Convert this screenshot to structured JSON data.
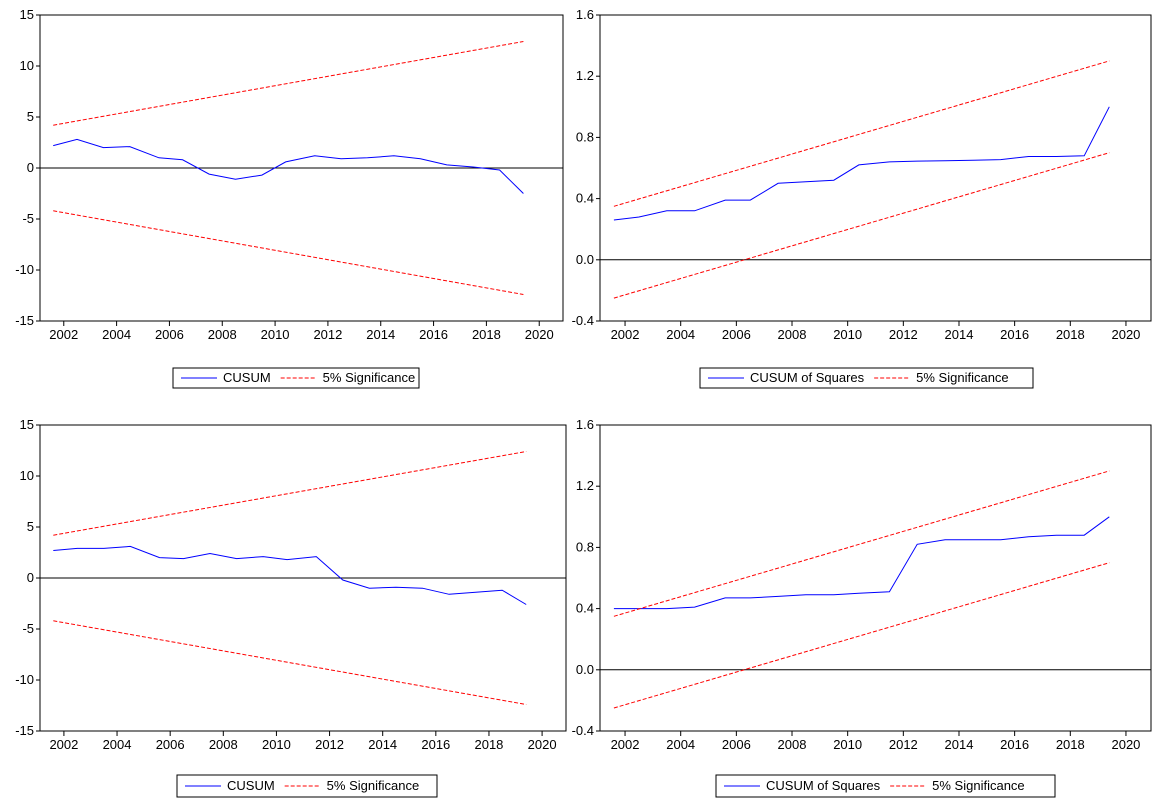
{
  "chart_data": [
    {
      "type": "line",
      "x": [
        2002,
        2003,
        2004,
        2005,
        2006,
        2007,
        2008,
        2009,
        2010,
        2011,
        2012,
        2013,
        2014,
        2015,
        2016,
        2017,
        2018,
        2019,
        2020
      ],
      "xticks": [
        2002,
        2004,
        2006,
        2008,
        2010,
        2012,
        2014,
        2016,
        2018,
        2020
      ],
      "xlim": [
        2001.1,
        2020.9
      ],
      "ylim": [
        -15,
        15
      ],
      "yticks": [
        "-15",
        "-10",
        "-5",
        "0",
        "5",
        "10",
        "15"
      ],
      "zero_line": true,
      "series": [
        {
          "name": "CUSUM",
          "color": "#0000ff",
          "dash": false,
          "points": [
            [
              2001.6,
              2.2
            ],
            [
              2002.5,
              2.8
            ],
            [
              2003.5,
              2.0
            ],
            [
              2004.5,
              2.1
            ],
            [
              2005.6,
              1.0
            ],
            [
              2006.5,
              0.8
            ],
            [
              2007.5,
              -0.6
            ],
            [
              2008.5,
              -1.1
            ],
            [
              2009.5,
              -0.7
            ],
            [
              2010.4,
              0.6
            ],
            [
              2011.5,
              1.2
            ],
            [
              2012.5,
              0.9
            ],
            [
              2013.5,
              1.0
            ],
            [
              2014.5,
              1.2
            ],
            [
              2015.5,
              0.9
            ],
            [
              2016.5,
              0.3
            ],
            [
              2017.5,
              0.1
            ],
            [
              2018.5,
              -0.2
            ],
            [
              2019.4,
              -2.5
            ]
          ]
        },
        {
          "name": "5% Significance",
          "color": "#ff0000",
          "dash": true,
          "points": [
            [
              2001.6,
              4.2
            ],
            [
              2019.4,
              12.4
            ]
          ]
        },
        {
          "color": "#ff0000",
          "dash": true,
          "points": [
            [
              2001.6,
              -4.2
            ],
            [
              2019.4,
              -12.4
            ]
          ]
        }
      ],
      "legend": [
        "CUSUM",
        "5% Significance"
      ]
    },
    {
      "type": "line",
      "x": [
        2002,
        2003,
        2004,
        2005,
        2006,
        2007,
        2008,
        2009,
        2010,
        2011,
        2012,
        2013,
        2014,
        2015,
        2016,
        2017,
        2018,
        2019,
        2020
      ],
      "xticks": [
        2002,
        2004,
        2006,
        2008,
        2010,
        2012,
        2014,
        2016,
        2018,
        2020
      ],
      "xlim": [
        2001.1,
        2020.9
      ],
      "ylim": [
        -0.4,
        1.6
      ],
      "yticks": [
        "-0.4",
        "0.0",
        "0.4",
        "0.8",
        "1.2",
        "1.6"
      ],
      "zero_line": true,
      "series": [
        {
          "name": "CUSUM of Squares",
          "color": "#0000ff",
          "dash": false,
          "points": [
            [
              2001.6,
              0.26
            ],
            [
              2002.5,
              0.28
            ],
            [
              2003.5,
              0.32
            ],
            [
              2004.5,
              0.32
            ],
            [
              2005.6,
              0.39
            ],
            [
              2006.5,
              0.39
            ],
            [
              2007.5,
              0.5
            ],
            [
              2008.5,
              0.51
            ],
            [
              2009.5,
              0.52
            ],
            [
              2010.4,
              0.62
            ],
            [
              2011.5,
              0.64
            ],
            [
              2012.5,
              0.645
            ],
            [
              2013.5,
              0.648
            ],
            [
              2014.5,
              0.65
            ],
            [
              2015.5,
              0.655
            ],
            [
              2016.5,
              0.675
            ],
            [
              2017.5,
              0.675
            ],
            [
              2018.5,
              0.68
            ],
            [
              2019.4,
              1.0
            ]
          ]
        },
        {
          "name": "5% Significance",
          "color": "#ff0000",
          "dash": true,
          "points": [
            [
              2001.6,
              0.35
            ],
            [
              2019.4,
              1.3
            ]
          ]
        },
        {
          "color": "#ff0000",
          "dash": true,
          "points": [
            [
              2001.6,
              -0.25
            ],
            [
              2019.4,
              0.7
            ]
          ]
        }
      ],
      "legend": [
        "CUSUM of Squares",
        "5% Significance"
      ]
    },
    {
      "type": "line",
      "x": [
        2002,
        2003,
        2004,
        2005,
        2006,
        2007,
        2008,
        2009,
        2010,
        2011,
        2012,
        2013,
        2014,
        2015,
        2016,
        2017,
        2018,
        2019,
        2020
      ],
      "xticks": [
        2002,
        2004,
        2006,
        2008,
        2010,
        2012,
        2014,
        2016,
        2018,
        2020
      ],
      "xlim": [
        2001.1,
        2020.9
      ],
      "ylim": [
        -15,
        15
      ],
      "yticks": [
        "-15",
        "-10",
        "-5",
        "0",
        "5",
        "10",
        "15"
      ],
      "zero_line": true,
      "series": [
        {
          "name": "CUSUM",
          "color": "#0000ff",
          "dash": false,
          "points": [
            [
              2001.6,
              2.7
            ],
            [
              2002.5,
              2.9
            ],
            [
              2003.5,
              2.9
            ],
            [
              2004.5,
              3.1
            ],
            [
              2005.6,
              2.0
            ],
            [
              2006.5,
              1.9
            ],
            [
              2007.5,
              2.4
            ],
            [
              2008.5,
              1.9
            ],
            [
              2009.5,
              2.1
            ],
            [
              2010.4,
              1.8
            ],
            [
              2011.5,
              2.1
            ],
            [
              2012.5,
              -0.2
            ],
            [
              2013.5,
              -1.0
            ],
            [
              2014.5,
              -0.9
            ],
            [
              2015.5,
              -1.0
            ],
            [
              2016.5,
              -1.6
            ],
            [
              2017.5,
              -1.4
            ],
            [
              2018.5,
              -1.2
            ],
            [
              2019.4,
              -2.6
            ]
          ]
        },
        {
          "name": "5% Significance",
          "color": "#ff0000",
          "dash": true,
          "points": [
            [
              2001.6,
              4.2
            ],
            [
              2019.4,
              12.4
            ]
          ]
        },
        {
          "color": "#ff0000",
          "dash": true,
          "points": [
            [
              2001.6,
              -4.2
            ],
            [
              2019.4,
              -12.4
            ]
          ]
        }
      ],
      "legend": [
        "CUSUM",
        "5% Significance"
      ]
    },
    {
      "type": "line",
      "x": [
        2002,
        2003,
        2004,
        2005,
        2006,
        2007,
        2008,
        2009,
        2010,
        2011,
        2012,
        2013,
        2014,
        2015,
        2016,
        2017,
        2018,
        2019,
        2020
      ],
      "xticks": [
        2002,
        2004,
        2006,
        2008,
        2010,
        2012,
        2014,
        2016,
        2018,
        2020
      ],
      "xlim": [
        2001.1,
        2020.9
      ],
      "ylim": [
        -0.4,
        1.6
      ],
      "yticks": [
        "-0.4",
        "0.0",
        "0.4",
        "0.8",
        "1.2",
        "1.6"
      ],
      "zero_line": true,
      "series": [
        {
          "name": "CUSUM of Squares",
          "color": "#0000ff",
          "dash": false,
          "points": [
            [
              2001.6,
              0.4
            ],
            [
              2002.5,
              0.4
            ],
            [
              2003.5,
              0.4
            ],
            [
              2004.5,
              0.41
            ],
            [
              2005.6,
              0.47
            ],
            [
              2006.5,
              0.47
            ],
            [
              2007.5,
              0.48
            ],
            [
              2008.5,
              0.49
            ],
            [
              2009.5,
              0.49
            ],
            [
              2010.4,
              0.5
            ],
            [
              2011.5,
              0.51
            ],
            [
              2012.5,
              0.82
            ],
            [
              2013.5,
              0.85
            ],
            [
              2014.5,
              0.85
            ],
            [
              2015.5,
              0.85
            ],
            [
              2016.5,
              0.87
            ],
            [
              2017.5,
              0.88
            ],
            [
              2018.5,
              0.88
            ],
            [
              2019.4,
              1.0
            ]
          ]
        },
        {
          "name": "5% Significance",
          "color": "#ff0000",
          "dash": true,
          "points": [
            [
              2001.6,
              0.35
            ],
            [
              2019.4,
              1.3
            ]
          ]
        },
        {
          "color": "#ff0000",
          "dash": true,
          "points": [
            [
              2001.6,
              -0.25
            ],
            [
              2019.4,
              0.7
            ]
          ]
        }
      ],
      "legend": [
        "CUSUM of Squares",
        "5% Significance"
      ]
    }
  ]
}
